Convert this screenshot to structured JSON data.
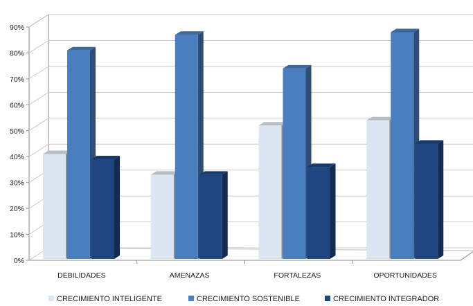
{
  "chart_data": {
    "type": "bar",
    "title": "",
    "xlabel": "",
    "ylabel": "",
    "categories": [
      "DEBILIDADES",
      "AMENAZAS",
      "FORTALEZAS",
      "OPORTUNIDADES"
    ],
    "y_ticks": [
      "0%",
      "10%",
      "20%",
      "30%",
      "40%",
      "50%",
      "60%",
      "70%",
      "80%",
      "90%"
    ],
    "ylim": [
      0,
      90
    ],
    "grid": true,
    "legend_position": "bottom",
    "series": [
      {
        "name": "CRECIMIENTO INTELIGENTE",
        "color": "#dce6f2",
        "values": [
          41,
          33,
          52,
          54
        ]
      },
      {
        "name": "CRECIMIENTO SOSTENIBLE",
        "color": "#4a7ebf",
        "values": [
          81,
          87,
          74,
          88
        ]
      },
      {
        "name": "CRECIMIENTO INTEGRADOR",
        "color": "#1f4680",
        "values": [
          39,
          33,
          36,
          45
        ]
      }
    ]
  }
}
